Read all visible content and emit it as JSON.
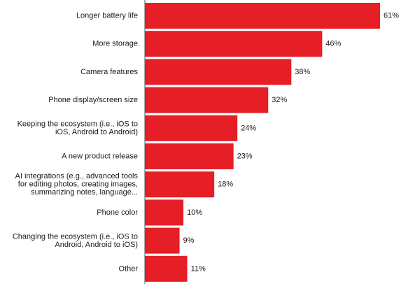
{
  "chart_data": {
    "type": "bar",
    "orientation": "horizontal",
    "title": "",
    "xlabel": "",
    "ylabel": "",
    "xlim": [
      0,
      61
    ],
    "grid": false,
    "legend": "none",
    "bar_color": "#e61e25",
    "axis_color": "#555555",
    "categories": [
      [
        "Longer battery life"
      ],
      [
        "More storage"
      ],
      [
        "Camera features"
      ],
      [
        "Phone display/screen size"
      ],
      [
        "Keeping the ecosystem (i.e., iOS to",
        "iOS, Android to Android)"
      ],
      [
        "A new product release"
      ],
      [
        "AI integrations (e.g., advanced tools",
        "for editing photos, creating images,",
        "summarizing notes, language..."
      ],
      [
        "Phone color"
      ],
      [
        "Changing the ecosystem (i.e., iOS to",
        "Android, Android to iOS)"
      ],
      [
        "Other"
      ]
    ],
    "values": [
      61,
      46,
      38,
      32,
      24,
      23,
      18,
      10,
      9,
      11
    ],
    "value_labels": [
      "61%",
      "46%",
      "38%",
      "32%",
      "24%",
      "23%",
      "18%",
      "10%",
      "9%",
      "11%"
    ]
  }
}
